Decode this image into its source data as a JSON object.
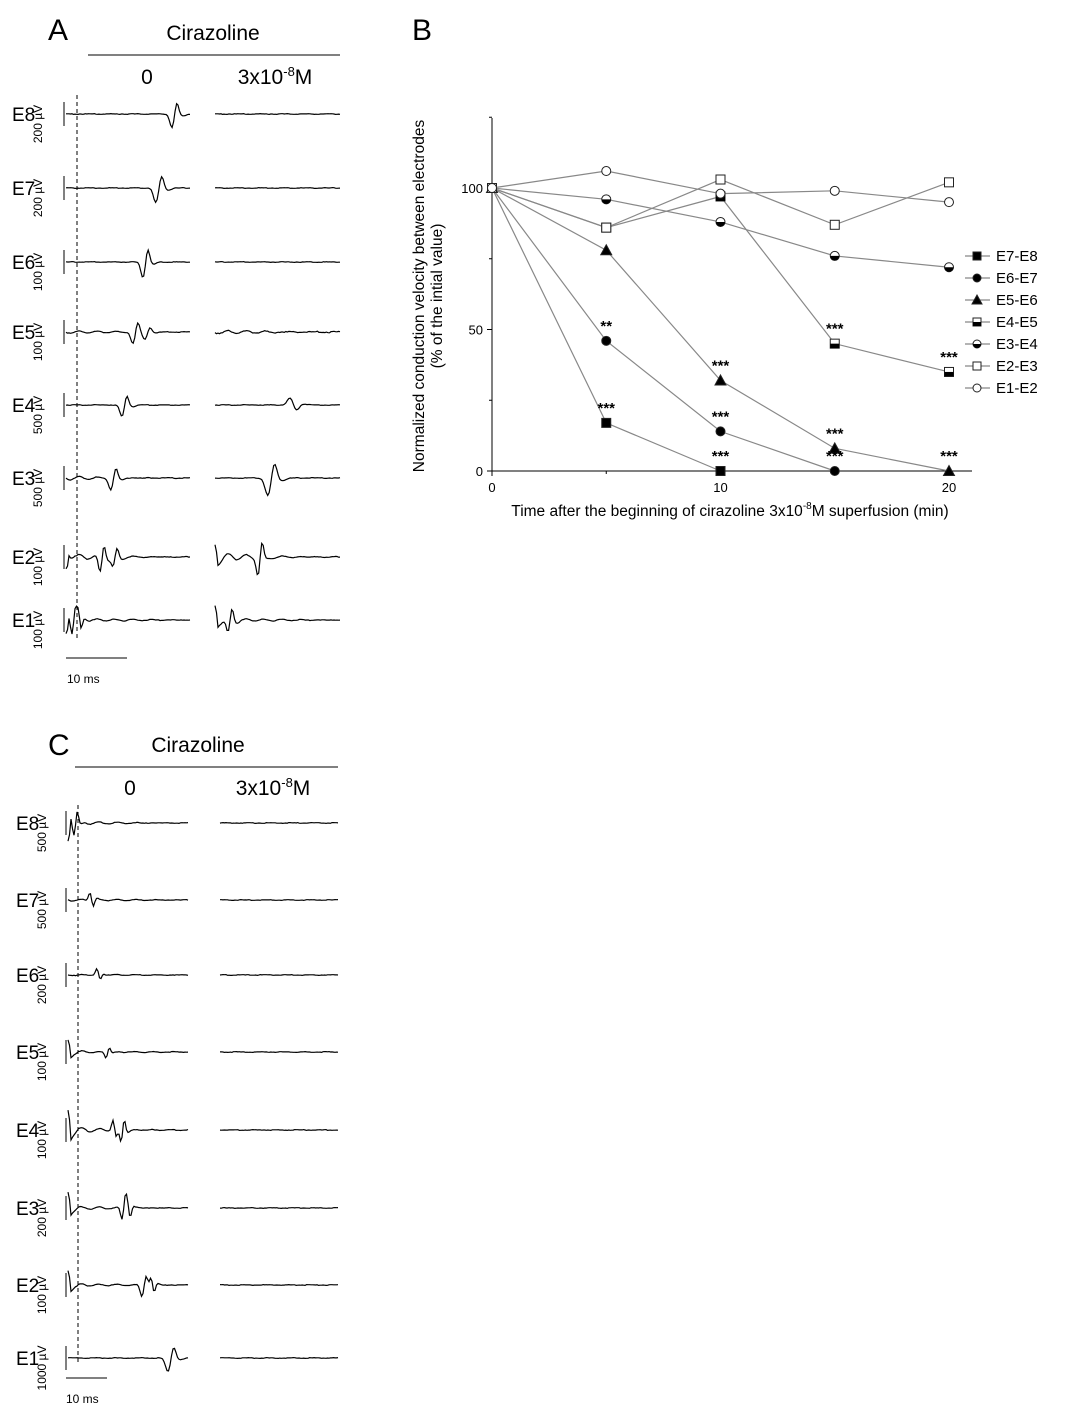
{
  "panelA": {
    "letter": "A",
    "drug": "Cirazoline",
    "col0": "0",
    "col1": "3x10",
    "col1_exp": "-8",
    "col1_unit": "M",
    "time_scale": "10 ms",
    "rows": [
      {
        "electrode": "E8",
        "scale": "200 µV"
      },
      {
        "electrode": "E7",
        "scale": "200 µV"
      },
      {
        "electrode": "E6",
        "scale": "100 µV"
      },
      {
        "electrode": "E5",
        "scale": "100 µV"
      },
      {
        "electrode": "E4",
        "scale": "500 µV"
      },
      {
        "electrode": "E3",
        "scale": "500 µV"
      },
      {
        "electrode": "E2",
        "scale": "100 µV"
      },
      {
        "electrode": "E1",
        "scale": "100 µV"
      }
    ]
  },
  "panelC": {
    "letter": "C",
    "drug": "Cirazoline",
    "col0": "0",
    "col1": "3x10",
    "col1_exp": "-8",
    "col1_unit": "M",
    "time_scale": "10 ms",
    "rows": [
      {
        "electrode": "E8",
        "scale": "500 µV"
      },
      {
        "electrode": "E7",
        "scale": "500 µV"
      },
      {
        "electrode": "E6",
        "scale": "200 µV"
      },
      {
        "electrode": "E5",
        "scale": "100 µV"
      },
      {
        "electrode": "E4",
        "scale": "100 µV"
      },
      {
        "electrode": "E3",
        "scale": "200 µV"
      },
      {
        "electrode": "E2",
        "scale": "100 µV"
      },
      {
        "electrode": "E1",
        "scale": "1000 µV"
      }
    ]
  },
  "panelB": {
    "letter": "B",
    "chart_data": {
      "type": "line",
      "ylabel_line1": "Normalized conduction velocity between electrodes",
      "ylabel_line2": "(% of the intial value)",
      "xlabel_pre": "Time after the beginning of cirazoline 3x10",
      "xlabel_exp": "-8",
      "xlabel_post": "M superfusion (min)",
      "x_ticks": [
        0,
        10,
        20
      ],
      "y_ticks": [
        0,
        50,
        100
      ],
      "xlim": [
        0,
        21
      ],
      "ylim": [
        0,
        125
      ],
      "legend_position": "right",
      "series": [
        {
          "name": "E7-E8",
          "marker": "square-filled",
          "x": [
            0,
            5,
            10
          ],
          "y": [
            100,
            17,
            0
          ]
        },
        {
          "name": "E6-E7",
          "marker": "circle-filled",
          "x": [
            0,
            5,
            10,
            15
          ],
          "y": [
            100,
            46,
            14,
            0
          ]
        },
        {
          "name": "E5-E6",
          "marker": "triangle-filled",
          "x": [
            0,
            5,
            10,
            15,
            20
          ],
          "y": [
            100,
            78,
            32,
            8,
            0
          ]
        },
        {
          "name": "E4-E5",
          "marker": "square-half",
          "x": [
            0,
            5,
            10,
            15,
            20
          ],
          "y": [
            100,
            86,
            97,
            45,
            35
          ]
        },
        {
          "name": "E3-E4",
          "marker": "circle-half",
          "x": [
            0,
            5,
            10,
            15,
            20
          ],
          "y": [
            100,
            96,
            88,
            76,
            72
          ]
        },
        {
          "name": "E2-E3",
          "marker": "square-open",
          "x": [
            0,
            5,
            10,
            15,
            20
          ],
          "y": [
            100,
            86,
            103,
            87,
            102
          ]
        },
        {
          "name": "E1-E2",
          "marker": "circle-open",
          "x": [
            0,
            5,
            10,
            15,
            20
          ],
          "y": [
            100,
            106,
            98,
            99,
            95
          ]
        }
      ],
      "annotations": [
        {
          "x": 5,
          "y": 46,
          "text": "**"
        },
        {
          "x": 5,
          "y": 17,
          "text": "***"
        },
        {
          "x": 10,
          "y": 32,
          "text": "***"
        },
        {
          "x": 10,
          "y": 14,
          "text": "***"
        },
        {
          "x": 10,
          "y": 0,
          "text": "***"
        },
        {
          "x": 15,
          "y": 45,
          "text": "***"
        },
        {
          "x": 15,
          "y": 8,
          "text": "***"
        },
        {
          "x": 15,
          "y": 0,
          "text": "***"
        },
        {
          "x": 20,
          "y": 35,
          "text": "***"
        },
        {
          "x": 20,
          "y": 0,
          "text": "***"
        }
      ]
    }
  }
}
